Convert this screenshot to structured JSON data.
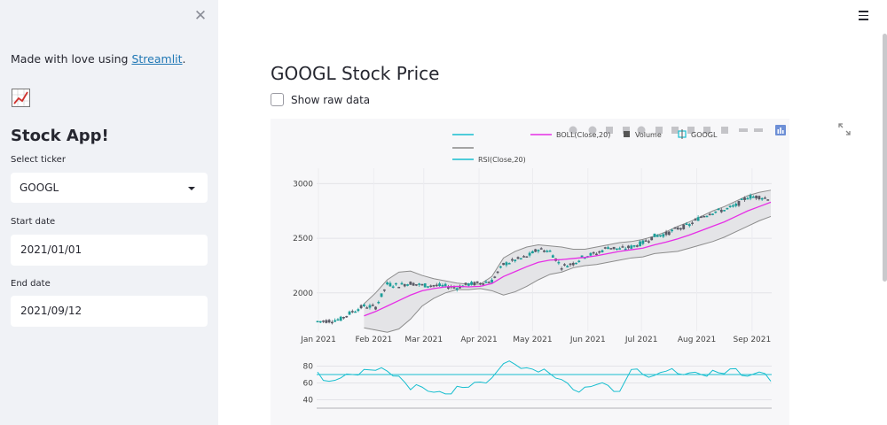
{
  "sidebar": {
    "credit_prefix": "Made with love using ",
    "credit_link": "Streamlit",
    "credit_suffix": ".",
    "emoji_icon": "chart-increasing-icon",
    "title": "Stock App!",
    "ticker_label": "Select ticker",
    "ticker_value": "GOOGL",
    "start_label": "Start date",
    "start_value": "2021/01/01",
    "end_label": "End date",
    "end_value": "2021/09/12"
  },
  "main": {
    "title": "GOOGL Stock Price",
    "show_raw_label": "Show raw data",
    "show_raw_checked": false
  },
  "colors": {
    "sidebar_bg": "#f0f2f6",
    "link": "#1f77b4",
    "boll_mid": "#e62ee6",
    "band": "#8c8c8c",
    "rsi": "#17becf",
    "candle_up": "#1b9e9a",
    "candle_down": "#5a5a66"
  },
  "chart_data": {
    "type": "candlestick",
    "legend": [
      {
        "name": "",
        "color": "#17becf"
      },
      {
        "name": "BOLL(Close,20)",
        "color": "#e62ee6"
      },
      {
        "name": "Volume",
        "color": "#555555"
      },
      {
        "name": "GOOGL",
        "color": "#17becf"
      },
      {
        "name": "",
        "color": "#888888"
      },
      {
        "name": "RSI(Close,20)",
        "color": "#17becf"
      }
    ],
    "x_tick_labels": [
      "Jan 2021",
      "Feb 2021",
      "Mar 2021",
      "Apr 2021",
      "May 2021",
      "Jun 2021",
      "Jul 2021",
      "Aug 2021",
      "Sep 2021"
    ],
    "x_range": [
      "2020-12-31",
      "2021-09-12"
    ],
    "price": {
      "ylim": [
        1650,
        3060
      ],
      "y_ticks": [
        2000,
        2500,
        3000
      ],
      "y_tick_labels": [
        "2000",
        "2500",
        "3000"
      ],
      "close_week": [
        1740,
        1745,
        1760,
        1830,
        1880,
        1870,
        2080,
        2070,
        2090,
        2070,
        2070,
        2060,
        2050,
        2080,
        2090,
        2110,
        2260,
        2300,
        2330,
        2400,
        2380,
        2240,
        2270,
        2340,
        2360,
        2420,
        2400,
        2420,
        2460,
        2520,
        2540,
        2590,
        2620,
        2700,
        2740,
        2760,
        2800,
        2880,
        2880,
        2860
      ],
      "boll_mid": [
        null,
        null,
        null,
        null,
        1790,
        1830,
        1880,
        1930,
        1980,
        2020,
        2040,
        2055,
        2060,
        2055,
        2060,
        2085,
        2150,
        2195,
        2240,
        2280,
        2300,
        2305,
        2315,
        2325,
        2340,
        2360,
        2380,
        2395,
        2410,
        2440,
        2465,
        2495,
        2530,
        2570,
        2610,
        2650,
        2700,
        2750,
        2790,
        2830
      ],
      "boll_upper": [
        null,
        null,
        null,
        null,
        1900,
        2000,
        2120,
        2190,
        2200,
        2160,
        2130,
        2110,
        2090,
        2080,
        2080,
        2150,
        2320,
        2380,
        2420,
        2440,
        2430,
        2420,
        2400,
        2400,
        2420,
        2440,
        2460,
        2470,
        2490,
        2520,
        2560,
        2610,
        2650,
        2700,
        2750,
        2790,
        2840,
        2890,
        2920,
        2940
      ],
      "boll_lower": [
        null,
        null,
        null,
        null,
        1680,
        1660,
        1640,
        1670,
        1760,
        1880,
        1950,
        2000,
        2030,
        2030,
        2040,
        2020,
        1980,
        2010,
        2060,
        2120,
        2170,
        2190,
        2230,
        2250,
        2260,
        2280,
        2300,
        2320,
        2330,
        2360,
        2370,
        2380,
        2410,
        2440,
        2470,
        2510,
        2560,
        2610,
        2660,
        2700
      ]
    },
    "rsi": {
      "ylim": [
        30,
        90
      ],
      "y_ticks": [
        40,
        60,
        80
      ],
      "y_tick_labels": [
        "40",
        "60",
        "80"
      ],
      "reference_level": 70,
      "values": [
        73,
        62,
        66,
        70,
        76,
        75,
        74,
        68,
        52,
        55,
        49,
        47,
        56,
        55,
        61,
        66,
        83,
        82,
        78,
        73,
        71,
        64,
        52,
        55,
        58,
        57,
        50,
        76,
        70,
        69,
        74,
        71,
        72,
        70,
        75,
        71,
        77,
        68,
        73,
        62
      ]
    }
  }
}
